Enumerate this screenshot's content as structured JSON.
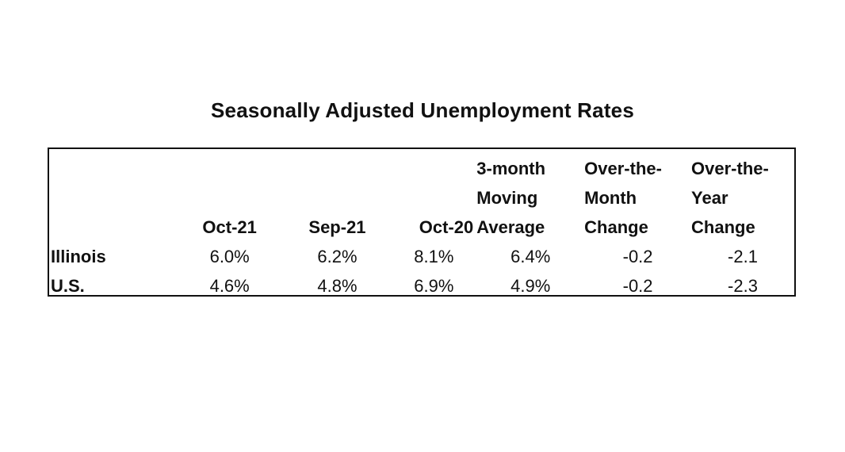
{
  "title": "Seasonally Adjusted Unemployment Rates",
  "table": {
    "header_rows": [
      [
        "",
        "",
        "",
        "",
        "3-month",
        "Over-the-",
        "Over-the-"
      ],
      [
        "",
        "",
        "",
        "",
        "Moving",
        "Month",
        "Year"
      ],
      [
        "",
        "Oct-21",
        "Sep-21",
        "Oct-20",
        "Average",
        "Change",
        "Change"
      ]
    ],
    "rows": [
      {
        "label": "Illinois",
        "values": [
          "6.0%",
          "6.2%",
          "8.1%",
          "6.4%",
          "-0.2",
          "-2.1"
        ]
      },
      {
        "label": "U.S.",
        "values": [
          "4.6%",
          "4.8%",
          "6.9%",
          "4.9%",
          "-0.2",
          "-2.3"
        ]
      }
    ]
  }
}
